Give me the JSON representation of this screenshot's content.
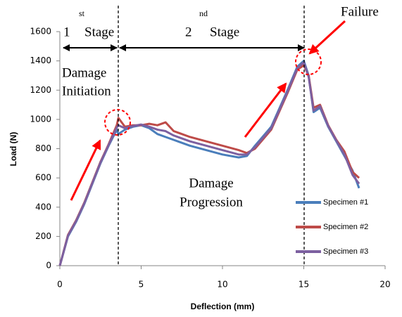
{
  "chart_data": {
    "type": "line",
    "x_label": "Deflection (mm)",
    "y_label": "Load (N)",
    "x": [
      0,
      0.5,
      1,
      1.5,
      2,
      2.5,
      3,
      3.5,
      3.6,
      4,
      4.5,
      5,
      5.5,
      6,
      6.5,
      7,
      8,
      9,
      10,
      11,
      11.5,
      12,
      13,
      14,
      14.6,
      15,
      15.3,
      15.6,
      16,
      16.5,
      17,
      17.5,
      18,
      18.4
    ],
    "series": [
      {
        "name": "Specimen #1",
        "color": "#4a7ebb",
        "values": [
          0,
          200,
          300,
          420,
          560,
          700,
          820,
          930,
          900,
          930,
          950,
          960,
          940,
          900,
          880,
          860,
          820,
          790,
          760,
          740,
          750,
          820,
          950,
          1200,
          1360,
          1400,
          1300,
          1050,
          1080,
          950,
          850,
          750,
          650,
          530
        ]
      },
      {
        "name": "Specimen #2",
        "color": "#be4b48",
        "values": [
          0,
          210,
          310,
          430,
          570,
          710,
          830,
          960,
          1010,
          950,
          960,
          960,
          970,
          960,
          980,
          920,
          880,
          850,
          820,
          790,
          770,
          800,
          930,
          1180,
          1340,
          1370,
          1300,
          1080,
          1100,
          960,
          860,
          780,
          640,
          600
        ]
      },
      {
        "name": "Specimen #3",
        "color": "#7d60a0",
        "values": [
          0,
          205,
          305,
          425,
          565,
          705,
          825,
          945,
          960,
          940,
          955,
          965,
          950,
          930,
          920,
          890,
          850,
          820,
          790,
          760,
          760,
          810,
          940,
          1190,
          1350,
          1390,
          1290,
          1060,
          1090,
          955,
          855,
          760,
          620,
          560
        ]
      }
    ],
    "xlim": [
      0,
      20
    ],
    "xticks": [
      0,
      5,
      10,
      15,
      20
    ],
    "ylim": [
      0,
      1600
    ],
    "yticks": [
      0,
      200,
      400,
      600,
      800,
      1000,
      1200,
      1400,
      1600
    ],
    "grid": false,
    "legend": "lower right",
    "annotations": {
      "stage1": {
        "number": "1",
        "suffix": "st",
        "text": "Stage"
      },
      "stage2": {
        "number": "2",
        "suffix": "nd",
        "text": "Stage"
      },
      "initiation": [
        "Damage",
        "Initiation"
      ],
      "progression": [
        "Damage",
        "Progression"
      ],
      "failure": "Failure"
    }
  }
}
